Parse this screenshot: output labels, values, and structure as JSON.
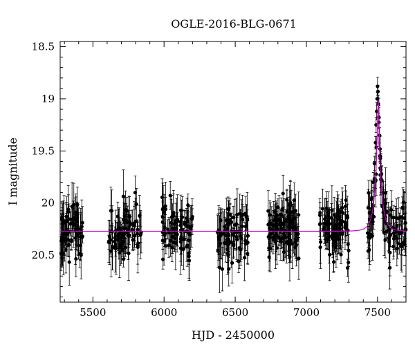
{
  "chart_data": {
    "type": "scatter",
    "title": "OGLE-2016-BLG-0671",
    "xlabel": "HJD - 2450000",
    "ylabel": "I magnitude",
    "xlim": [
      5270,
      7700
    ],
    "ylim": [
      20.95,
      18.45
    ],
    "y_inverted": true,
    "x_ticks": [
      5500,
      6000,
      6500,
      7000,
      7500
    ],
    "y_ticks": [
      18.5,
      19,
      19.5,
      20,
      20.5
    ],
    "x_tick_labels": [
      "5500",
      "6000",
      "6500",
      "7000",
      "7500"
    ],
    "y_tick_labels": [
      "18.5",
      "19",
      "19.5",
      "20",
      "20.5"
    ],
    "grid": false,
    "legend": "none",
    "colors": {
      "points": "#000000",
      "model": "#cc00cc"
    },
    "seasons": [
      {
        "start": 5275,
        "end": 5430,
        "n": 70
      },
      {
        "start": 5610,
        "end": 5840,
        "n": 80
      },
      {
        "start": 5980,
        "end": 6200,
        "n": 80
      },
      {
        "start": 6370,
        "end": 6590,
        "n": 80
      },
      {
        "start": 6730,
        "end": 6950,
        "n": 110
      },
      {
        "start": 7090,
        "end": 7300,
        "n": 90
      },
      {
        "start": 7430,
        "end": 7700,
        "n": 100
      }
    ],
    "model": {
      "baseline": 20.27,
      "t0": 7505,
      "peak": 19.0,
      "u0": 0.1,
      "tE": 45
    },
    "peak_points": [
      {
        "x": 7500,
        "y": 18.88
      },
      {
        "x": 7503,
        "y": 18.93
      },
      {
        "x": 7497,
        "y": 19.0
      },
      {
        "x": 7506,
        "y": 19.05
      },
      {
        "x": 7494,
        "y": 19.12
      },
      {
        "x": 7510,
        "y": 19.18
      },
      {
        "x": 7490,
        "y": 19.25
      },
      {
        "x": 7514,
        "y": 19.35
      },
      {
        "x": 7486,
        "y": 19.42
      },
      {
        "x": 7520,
        "y": 19.55
      },
      {
        "x": 7478,
        "y": 19.62
      },
      {
        "x": 7528,
        "y": 19.72
      },
      {
        "x": 7470,
        "y": 19.8
      },
      {
        "x": 7540,
        "y": 19.9
      },
      {
        "x": 7460,
        "y": 19.95
      }
    ],
    "scatter_sigma": 0.13,
    "error_range": [
      0.06,
      0.26
    ]
  }
}
